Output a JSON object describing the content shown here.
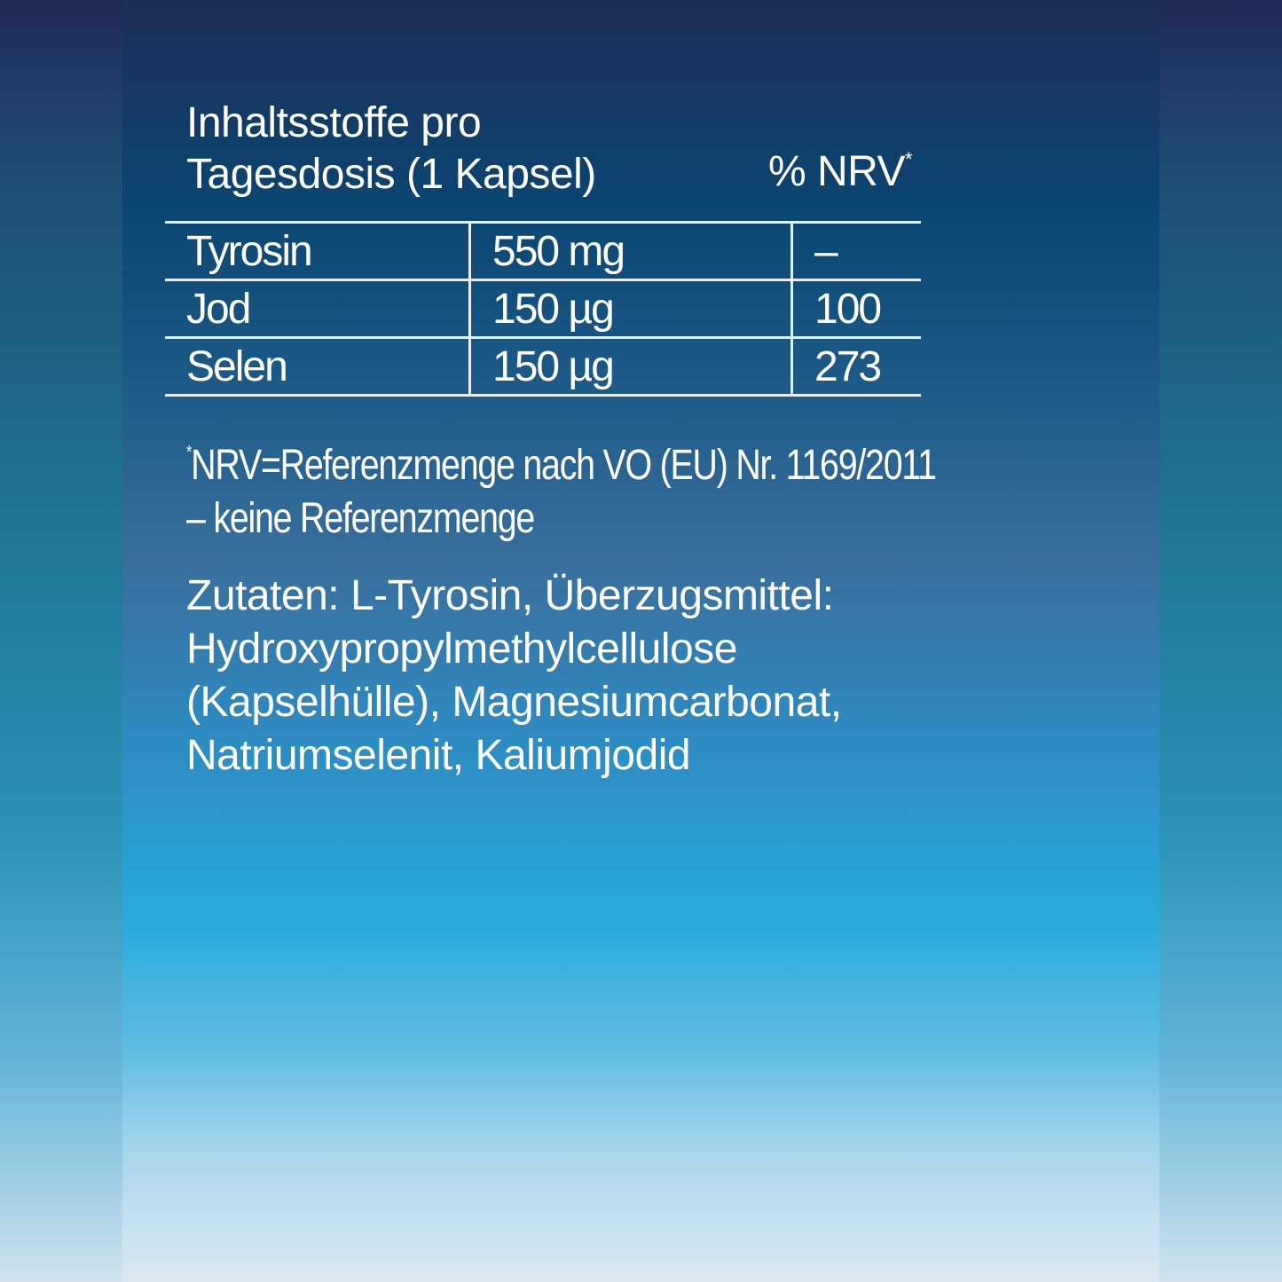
{
  "header": {
    "title_line1": "Inhaltsstoffe pro",
    "title_line2": "Tagesdosis (1 Kapsel)",
    "nrv_label": "% NRV",
    "nrv_mark": "*"
  },
  "table": {
    "rows": [
      {
        "name": "Tyrosin",
        "amount": "550 mg",
        "nrv": "–"
      },
      {
        "name": "Jod",
        "amount": "150 µg",
        "nrv": "100"
      },
      {
        "name": "Selen",
        "amount": "150 µg",
        "nrv": "273"
      }
    ]
  },
  "footnote": {
    "mark": "*",
    "line1": "NRV=Referenzmenge nach VO (EU) Nr. 1169/2011",
    "line2": "– keine Referenzmenge"
  },
  "ingredients": {
    "lines": [
      "Zutaten: L-Tyrosin, Überzugsmittel:",
      "Hydroxypropylmethylcellulose",
      "(Kapselhülle), Magnesiumcarbonat,",
      "Natriumselenit, Kaliumjodid"
    ]
  },
  "colors": {
    "text": "#ffffff",
    "top": "#1d2f55",
    "mid": "#29aadc",
    "bottom": "#dbe9f1"
  }
}
